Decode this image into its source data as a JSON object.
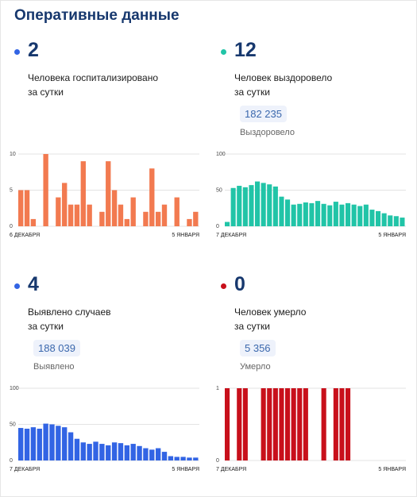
{
  "heading": "Оперативные данные",
  "colors": {
    "orange": "#f27a50",
    "teal": "#21c4a7",
    "blue": "#3264e4",
    "red": "#c8101b"
  },
  "panels": [
    {
      "number": "2",
      "line1": "Человека госпитализировано",
      "line2": "за сутки",
      "total": "",
      "total_label": ""
    },
    {
      "number": "12",
      "line1": "Человек выздоровело",
      "line2": "за сутки",
      "total": "182 235",
      "total_label": "Выздоровело"
    },
    {
      "number": "4",
      "line1": "Выявлено случаев",
      "line2": "за сутки",
      "total": "188 039",
      "total_label": "Выявлено"
    },
    {
      "number": "0",
      "line1": "Человек умерло",
      "line2": "за сутки",
      "total": "5 356",
      "total_label": "Умерло"
    }
  ],
  "chart_data": [
    {
      "type": "bar",
      "color": "#f27a50",
      "x_start_label": "6 ДЕКАБРЯ",
      "x_end_label": "5 ЯНВАРЯ",
      "y_ticks": [
        0,
        5,
        10
      ],
      "ylim": [
        0,
        10
      ],
      "values": [
        5,
        5,
        1,
        0,
        10,
        0,
        4,
        6,
        3,
        3,
        9,
        3,
        0,
        2,
        9,
        5,
        3,
        1,
        4,
        0,
        2,
        8,
        2,
        3,
        0,
        4,
        0,
        1,
        2
      ]
    },
    {
      "type": "bar",
      "color": "#21c4a7",
      "x_start_label": "7 ДЕКАБРЯ",
      "x_end_label": "5 ЯНВАРЯ",
      "y_ticks": [
        0,
        50,
        100
      ],
      "ylim": [
        0,
        100
      ],
      "values": [
        6,
        53,
        56,
        54,
        57,
        62,
        60,
        58,
        55,
        41,
        37,
        30,
        31,
        33,
        32,
        35,
        31,
        29,
        34,
        30,
        32,
        30,
        28,
        30,
        23,
        21,
        18,
        15,
        14,
        12
      ]
    },
    {
      "type": "bar",
      "color": "#3264e4",
      "x_start_label": "7 ДЕКАБРЯ",
      "x_end_label": "5 ЯНВАРЯ",
      "y_ticks": [
        0,
        50,
        100
      ],
      "ylim": [
        0,
        100
      ],
      "values": [
        45,
        44,
        46,
        44,
        51,
        50,
        48,
        46,
        39,
        30,
        25,
        23,
        26,
        23,
        21,
        25,
        24,
        21,
        23,
        20,
        17,
        15,
        17,
        12,
        6,
        5,
        5,
        4,
        4
      ]
    },
    {
      "type": "bar",
      "color": "#c8101b",
      "x_start_label": "7 ДЕКАБРЯ",
      "x_end_label": "5 ЯНВАРЯ",
      "y_ticks": [
        0,
        1
      ],
      "ylim": [
        0,
        1
      ],
      "values": [
        1,
        0,
        1,
        1,
        0,
        0,
        1,
        1,
        1,
        1,
        1,
        1,
        1,
        1,
        0,
        0,
        1,
        0,
        1,
        1,
        1,
        0,
        0,
        0,
        0,
        0,
        0,
        0,
        0,
        0
      ]
    }
  ]
}
